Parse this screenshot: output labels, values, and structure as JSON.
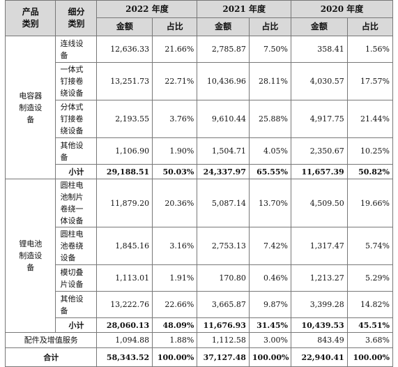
{
  "header": {
    "product_category": "产品\n类别",
    "sub_category": "细分\n类别",
    "years": [
      "2022 年度",
      "2021 年度",
      "2020 年度"
    ],
    "amount": "金额",
    "ratio": "占比"
  },
  "groups": [
    {
      "name": "电容器\n制造设\n备",
      "rows": [
        {
          "label": "连线设\n备",
          "v": [
            "12,636.33",
            "21.66%",
            "2,785.87",
            "7.50%",
            "358.41",
            "1.56%"
          ]
        },
        {
          "label": "一体式\n钉接卷\n绕设备",
          "v": [
            "13,251.73",
            "22.71%",
            "10,436.96",
            "28.11%",
            "4,030.57",
            "17.57%"
          ]
        },
        {
          "label": "分体式\n钉接卷\n绕设备",
          "v": [
            "2,193.55",
            "3.76%",
            "9,610.44",
            "25.88%",
            "4,917.75",
            "21.44%"
          ]
        },
        {
          "label": "其他设\n备",
          "v": [
            "1,106.90",
            "1.90%",
            "1,504.71",
            "4.05%",
            "2,350.67",
            "10.25%"
          ]
        }
      ],
      "subtotal": {
        "label": "小计",
        "v": [
          "29,188.51",
          "50.03%",
          "24,337.97",
          "65.55%",
          "11,657.39",
          "50.82%"
        ]
      }
    },
    {
      "name": "锂电池\n制造设\n备",
      "rows": [
        {
          "label": "圆柱电\n池制片\n卷绕一\n体设备",
          "v": [
            "11,879.20",
            "20.36%",
            "5,087.14",
            "13.70%",
            "4,509.50",
            "19.66%"
          ]
        },
        {
          "label": "圆柱电\n池卷绕\n设备",
          "v": [
            "1,845.16",
            "3.16%",
            "2,753.13",
            "7.42%",
            "1,317.47",
            "5.74%"
          ]
        },
        {
          "label": "模切叠\n片设备",
          "v": [
            "1,113.01",
            "1.91%",
            "170.80",
            "0.46%",
            "1,213.27",
            "5.29%"
          ]
        },
        {
          "label": "其他设\n备",
          "v": [
            "13,222.76",
            "22.66%",
            "3,665.87",
            "9.87%",
            "3,399.28",
            "14.82%"
          ]
        }
      ],
      "subtotal": {
        "label": "小计",
        "v": [
          "28,060.13",
          "48.09%",
          "11,676.93",
          "31.45%",
          "10,439.53",
          "45.51%"
        ]
      }
    }
  ],
  "service_row": {
    "label": "配件及增值服务",
    "v": [
      "1,094.88",
      "1.88%",
      "1,112.58",
      "3.00%",
      "843.49",
      "3.68%"
    ]
  },
  "total_row": {
    "label": "合计",
    "v": [
      "58,343.52",
      "100.00%",
      "37,127.48",
      "100.00%",
      "22,940.41",
      "100.00%"
    ]
  }
}
